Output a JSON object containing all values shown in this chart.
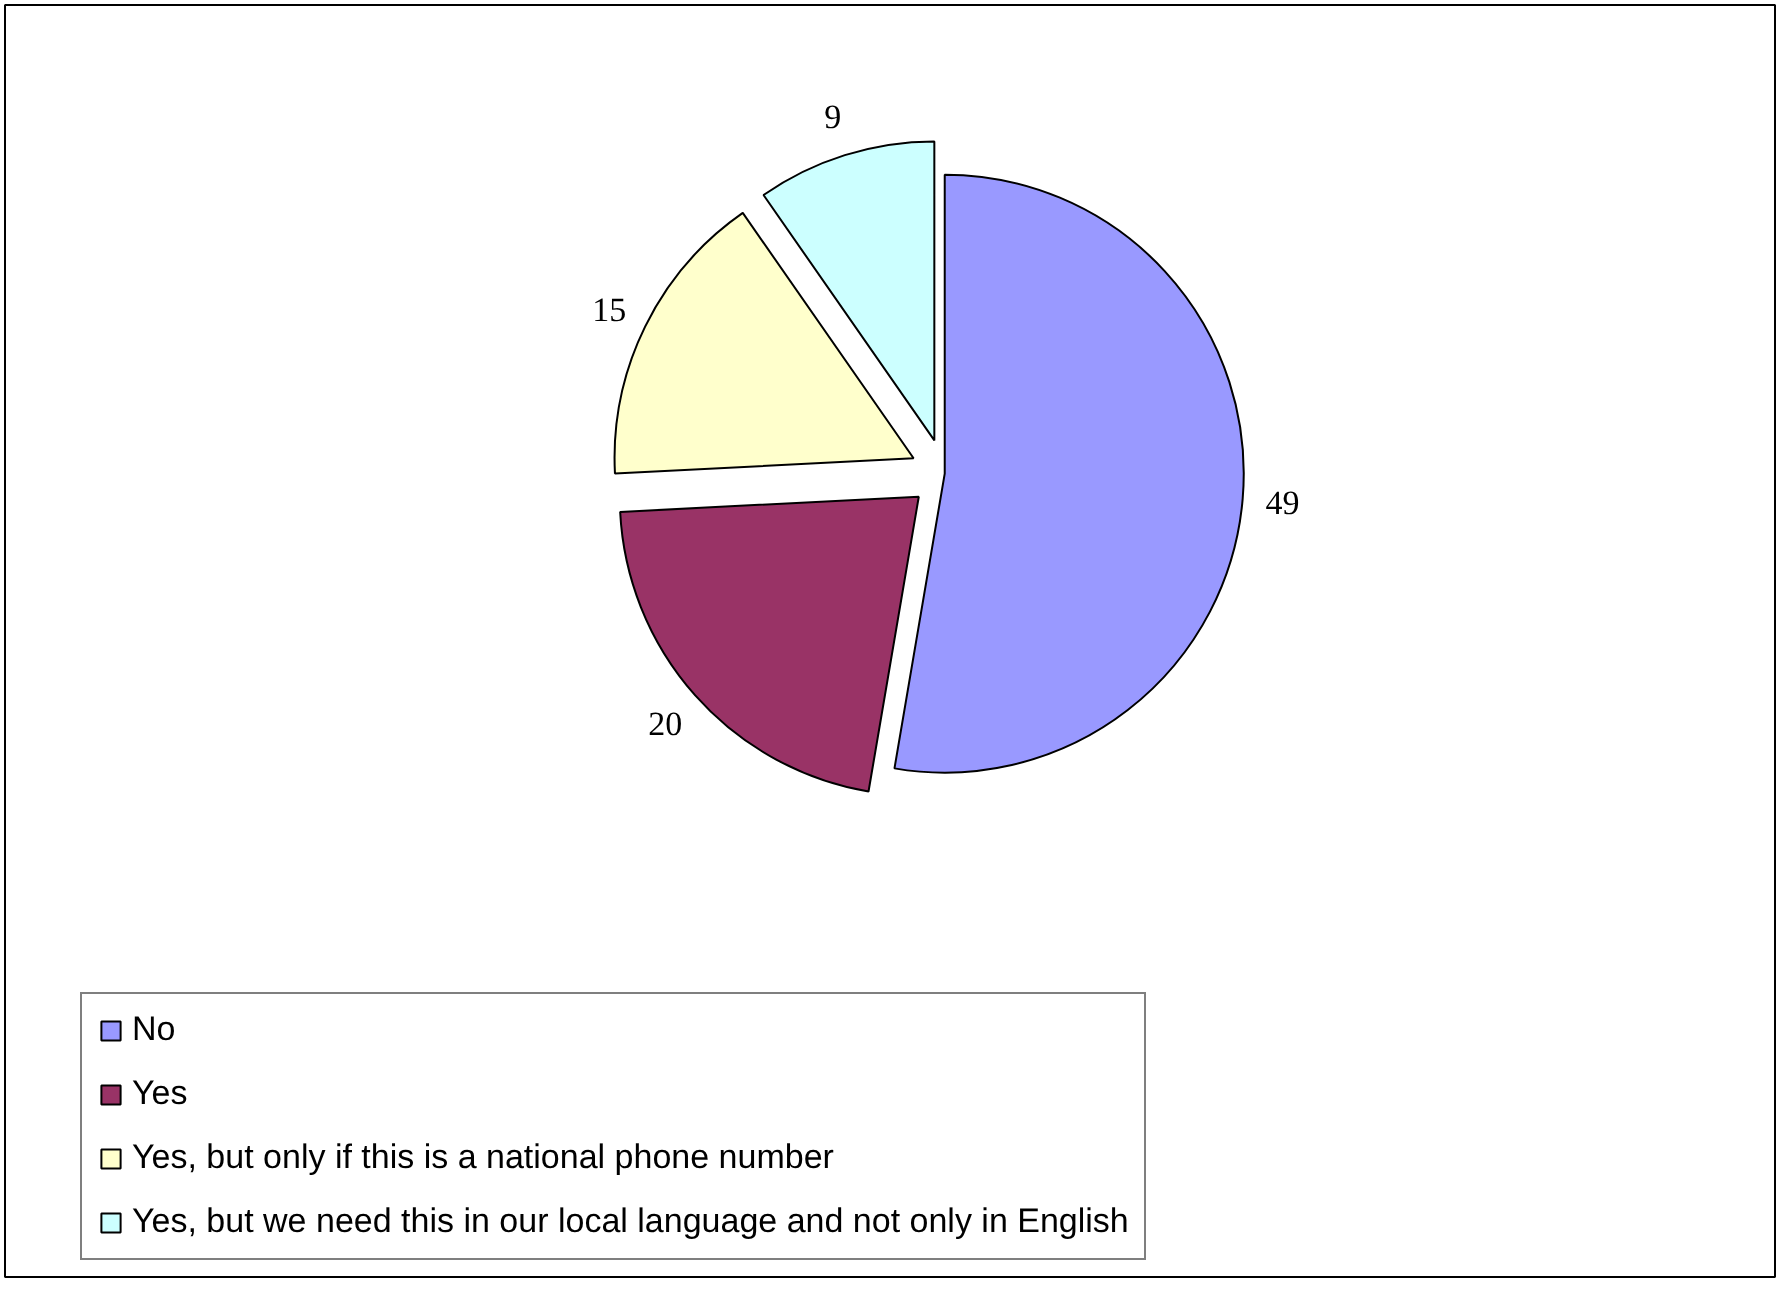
{
  "chart_data": {
    "type": "pie",
    "categories": [
      "No",
      "Yes",
      "Yes, but only if this is a national phone number",
      "Yes, but we need this in our local language and not only in English"
    ],
    "values": [
      49,
      20,
      15,
      9
    ],
    "colors": [
      "#9999ff",
      "#993366",
      "#ffffcc",
      "#ccffff"
    ],
    "data_labels": true,
    "legend": "bottom"
  }
}
